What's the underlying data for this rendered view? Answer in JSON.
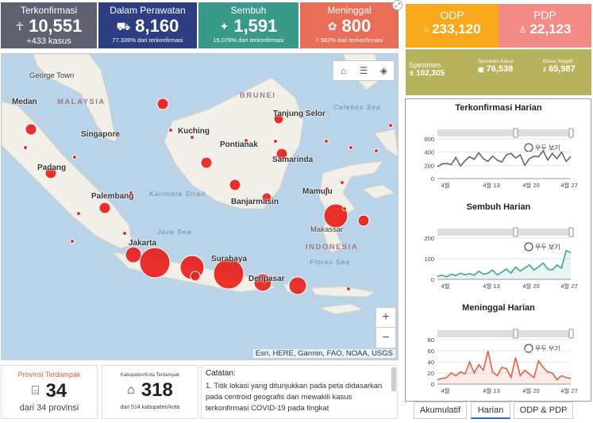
{
  "stats": {
    "confirmed": {
      "label": "Terkonfirmasi",
      "value": "10,551",
      "sub": "+433 kasus",
      "color": "#606170"
    },
    "treated": {
      "label": "Dalam Perawatan",
      "value": "8,160",
      "sub": "77.339% dari terkonfirmasi",
      "color": "#2d3e83"
    },
    "recovered": {
      "label": "Sembuh",
      "value": "1,591",
      "sub": "15.079% dari terkonfirmasi",
      "color": "#3a9a8a"
    },
    "deaths": {
      "label": "Meninggal",
      "value": "800",
      "sub": "7.582% dari terkonfirmasi",
      "color": "#e86e57"
    }
  },
  "odp": {
    "label": "ODP",
    "value": "233,120",
    "color": "#f9a81b"
  },
  "pdp": {
    "label": "PDP",
    "value": "22,123",
    "color": "#f58b86"
  },
  "specimens": {
    "color": "#b7b35c",
    "total_label": "Spesimen",
    "total_value": "102,305",
    "cases_label": "Spesimen Kasus",
    "cases_value": "76,538",
    "negative_label": "Kasus Negatif",
    "negative_value": "65,987"
  },
  "map": {
    "labels": {
      "george_town": "George Town",
      "medan": "Medan",
      "malaysia": "MALAYSIA",
      "brunei": "BRUNEI",
      "tanjung_selor": "Tanjung Selor",
      "kuching": "Kuching",
      "singapore": "Singapore",
      "pontianak": "Pontianak",
      "samarinda": "Samarinda",
      "padang": "Padang",
      "palembang": "Palembang",
      "mamuju": "Mamuju",
      "banjarmasin": "Banjarmasin",
      "makassar": "Makassar",
      "jakarta": "Jakarta",
      "indonesia": "INDONESIA",
      "surabaya": "Surabaya",
      "denpasar": "Denpasar"
    },
    "seas": {
      "celebes": "Celebes Sea",
      "karimata": "Karimata Strait",
      "java": "Java Sea",
      "flores": "Flores Sea"
    },
    "attribution": "Esri, HERE, Garmin, FAO, NOAA, USGS",
    "zoom_in": "+",
    "zoom_out": "−"
  },
  "cards": {
    "provinces": {
      "label": "Provinsi Terdampak",
      "value": "34",
      "sub": "dari 34 provinsi"
    },
    "regencies": {
      "label": "Kabupaten/Kota Terdampak",
      "value": "318",
      "sub": "dari 514 kabupaten/kota"
    },
    "notes": {
      "label": "Catatan:",
      "text": "1. Titik lokasi yang ditunjukkan pada peta didasarkan pada centroid geografis dan mewakili kasus terkonfirmasi COVID-19 pada tingkat"
    }
  },
  "charts_ui": {
    "zoom_label": "우두 보기"
  },
  "tabs": {
    "cumulative": "Akumulatif",
    "daily": "Harian",
    "odp_pdp": "ODP & PDP"
  },
  "chart_data": [
    {
      "type": "line",
      "title": "Terkonfirmasi Harian",
      "ylim": [
        0,
        600
      ],
      "yticks": [
        "600",
        "400",
        "200",
        "0"
      ],
      "xticks": [
        "4월",
        "4월 13",
        "4월 20",
        "4월 27"
      ],
      "color": "#666666",
      "values": [
        180,
        220,
        230,
        210,
        320,
        190,
        270,
        330,
        290,
        390,
        300,
        260,
        340,
        280,
        250,
        360,
        380,
        310,
        360,
        200,
        300,
        340,
        330,
        420,
        280,
        380,
        300,
        400,
        260,
        330
      ]
    },
    {
      "type": "area",
      "title": "Sembuh Harian",
      "ylim": [
        0,
        200
      ],
      "yticks": [
        "200",
        "100",
        "0"
      ],
      "xticks": [
        "4월",
        "4월 13",
        "4월 20",
        "4월 27"
      ],
      "color": "#3aa892",
      "values": [
        15,
        20,
        12,
        25,
        18,
        30,
        22,
        28,
        20,
        40,
        25,
        30,
        45,
        22,
        35,
        50,
        30,
        60,
        40,
        55,
        70,
        45,
        60,
        80,
        50,
        45,
        70,
        55,
        140,
        130
      ]
    },
    {
      "type": "area",
      "title": "Meninggal Harian",
      "ylim": [
        0,
        80
      ],
      "yticks": [
        "80",
        "60",
        "40",
        "20",
        "0"
      ],
      "xticks": [
        "4월",
        "4월 13",
        "4월 20",
        "4월 27"
      ],
      "color": "#e0604a",
      "values": [
        8,
        10,
        12,
        20,
        15,
        22,
        18,
        40,
        20,
        35,
        25,
        60,
        22,
        15,
        30,
        28,
        12,
        48,
        15,
        25,
        18,
        12,
        42,
        30,
        22,
        20,
        8,
        15,
        12,
        10
      ]
    }
  ]
}
